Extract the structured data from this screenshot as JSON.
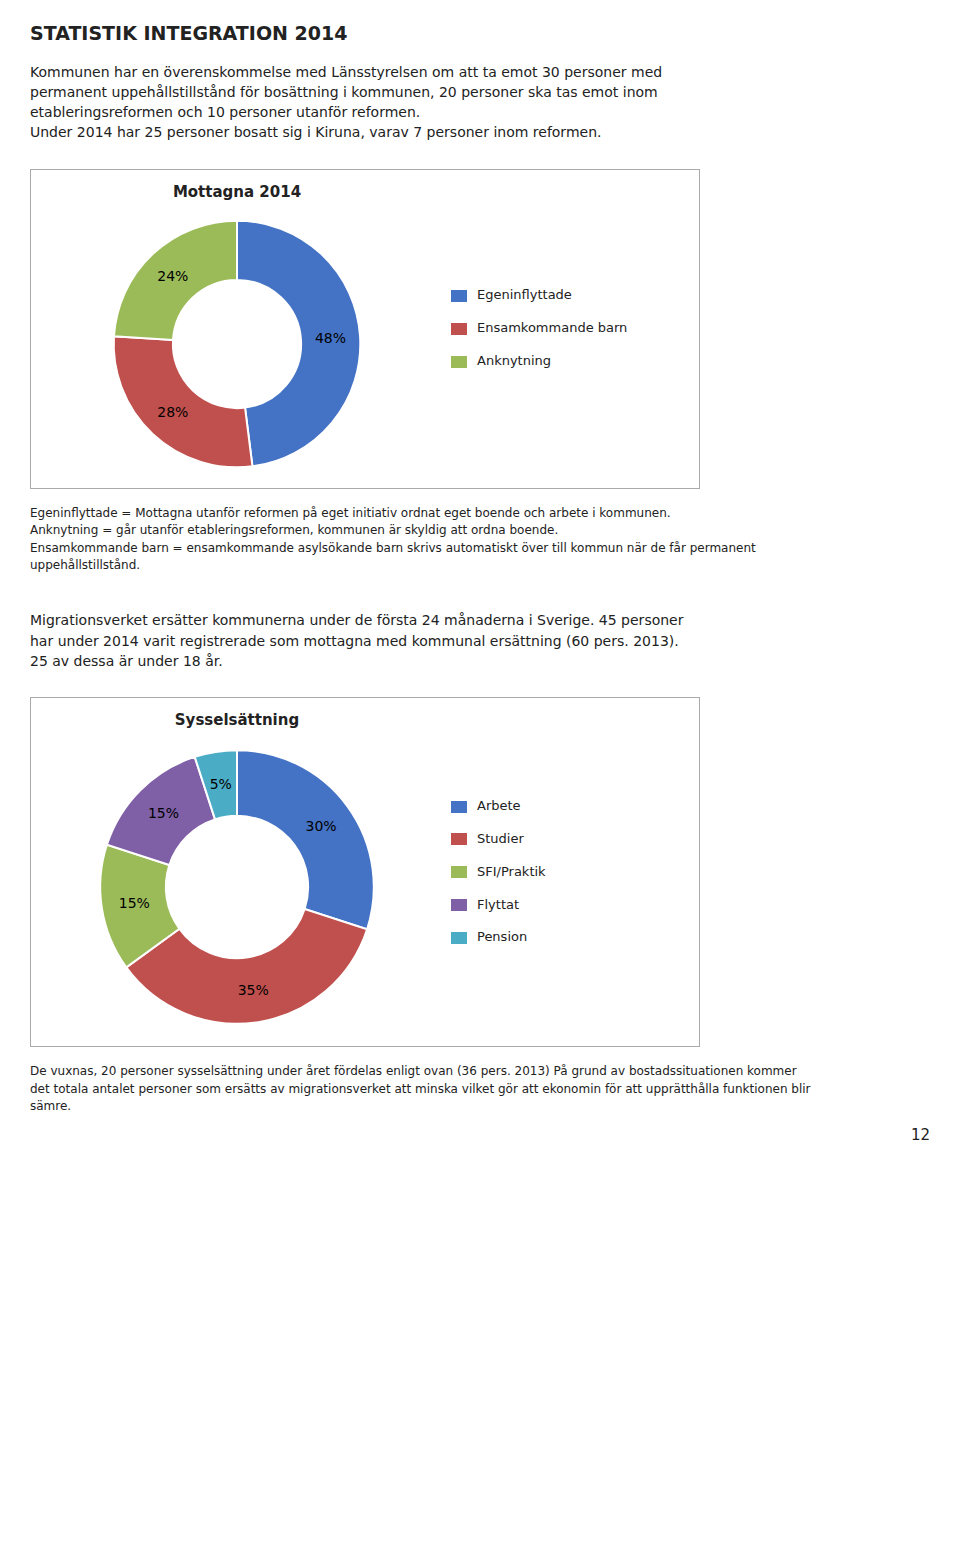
{
  "title": "STATISTIK INTEGRATION 2014",
  "annotations": [
    "12"
  ],
  "chart_data": [
    {
      "type": "pie",
      "title": "Mottagna 2014",
      "categories": [
        "Egeninflyttade",
        "Ensamkommande barn",
        "Anknytning"
      ],
      "values": [
        48,
        28,
        24
      ],
      "value_labels": [
        "48%",
        "28%",
        "24%"
      ],
      "colors": [
        "#4472C4",
        "#C0504D",
        "#9BBB59"
      ],
      "data_labels": true,
      "legend": "right",
      "annotations": [
        "Kommunen har en överenskommelse med Länsstyrelsen om att ta emot 30 personer med\npermanent uppehållstillstånd för bosättning i kommunen, 20 personer ska tas emot inom\netableringsreformen och 10 personer utanför reformen.\nUnder 2014 har 25 personer bosatt sig i Kiruna, varav 7 personer inom reformen.",
        "Egeninflyttade = Mottagna utanför reformen på eget initiativ ordnat eget boende och arbete i kommunen.\nAnknytning = går utanför etableringsreformen, kommunen är skyldig att ordna boende.\nEnsamkommande barn = ensamkommande asylsökande barn skrivs automatiskt över till kommun när de får permanent\nuppehållstillstånd."
      ]
    },
    {
      "type": "pie",
      "title": "Sysselsättning",
      "categories": [
        "Arbete",
        "Studier",
        "SFI/Praktik",
        "Flyttat",
        "Pension"
      ],
      "values": [
        30,
        35,
        15,
        15,
        5
      ],
      "value_labels": [
        "30%",
        "35%",
        "15%",
        "15%",
        "5%"
      ],
      "colors": [
        "#4472C4",
        "#C0504D",
        "#9BBB59",
        "#7F5FA6",
        "#4BACC6"
      ],
      "data_labels": true,
      "legend": "right",
      "annotations": [
        "Migrationsverket ersätter kommunerna under de första 24 månaderna i Sverige. 45 personer\nhar under 2014 varit registrerade som mottagna med kommunal ersättning (60 pers. 2013).\n25 av dessa är under 18 år.",
        "De vuxnas, 20 personer sysselsättning under året fördelas enligt ovan (36 pers. 2013) På grund av bostadssituationen kommer\ndet totala antalet personer som ersätts av migrationsverket att minska vilket gör att ekonomin för att upprätthålla funktionen blir\nsämre."
      ]
    }
  ]
}
